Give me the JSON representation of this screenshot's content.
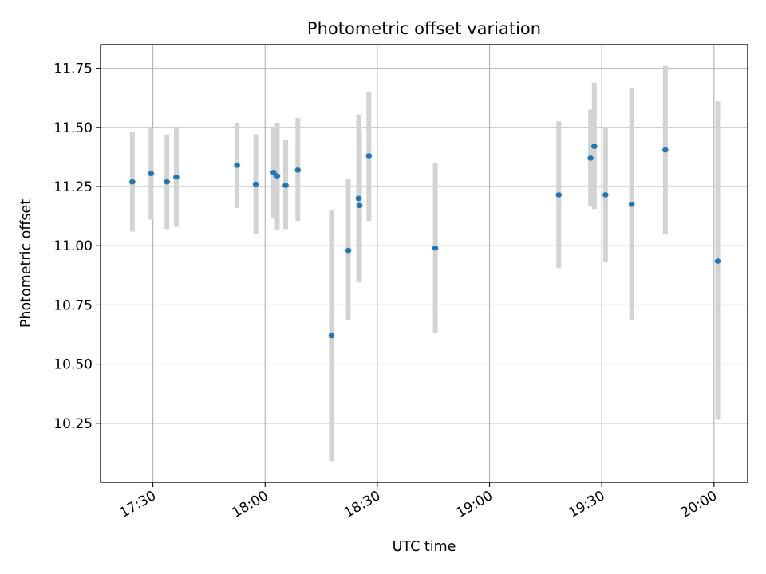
{
  "chart_data": {
    "type": "scatter",
    "title": "Photometric offset variation",
    "xlabel": "UTC time",
    "ylabel": "Photometric offset",
    "x_tick_labels": [
      "17:30",
      "18:00",
      "18:30",
      "19:00",
      "19:30",
      "20:00"
    ],
    "y_tick_labels": [
      "10.25",
      "10.50",
      "10.75",
      "11.00",
      "11.25",
      "11.50",
      "11.75"
    ],
    "y_ticks": [
      10.25,
      10.5,
      10.75,
      11.0,
      11.25,
      11.5,
      11.75
    ],
    "xlim": [
      "17:16",
      "20:09"
    ],
    "ylim": [
      10.0,
      11.85
    ],
    "grid": true,
    "point_color": "#1f77b4",
    "errorbar_color": "#d3d3d3",
    "series": [
      {
        "points": [
          {
            "time": "17:24:30",
            "y": 11.27,
            "ylow": 11.06,
            "yhigh": 11.48
          },
          {
            "time": "17:29:30",
            "y": 11.305,
            "ylow": 11.11,
            "yhigh": 11.5
          },
          {
            "time": "17:33:45",
            "y": 11.27,
            "ylow": 11.07,
            "yhigh": 11.47
          },
          {
            "time": "17:36:15",
            "y": 11.29,
            "ylow": 11.08,
            "yhigh": 11.5
          },
          {
            "time": "17:52:30",
            "y": 11.34,
            "ylow": 11.16,
            "yhigh": 11.52
          },
          {
            "time": "17:57:30",
            "y": 11.26,
            "ylow": 11.05,
            "yhigh": 11.47
          },
          {
            "time": "18:02:15",
            "y": 11.31,
            "ylow": 11.115,
            "yhigh": 11.5
          },
          {
            "time": "18:03:15",
            "y": 11.295,
            "ylow": 11.065,
            "yhigh": 11.52
          },
          {
            "time": "18:05:30",
            "y": 11.255,
            "ylow": 11.07,
            "yhigh": 11.445
          },
          {
            "time": "18:08:45",
            "y": 11.32,
            "ylow": 11.105,
            "yhigh": 11.54
          },
          {
            "time": "18:17:45",
            "y": 10.62,
            "ylow": 10.09,
            "yhigh": 11.15
          },
          {
            "time": "18:22:15",
            "y": 10.98,
            "ylow": 10.685,
            "yhigh": 11.28
          },
          {
            "time": "18:25:00",
            "y": 11.2,
            "ylow": 10.845,
            "yhigh": 11.555
          },
          {
            "time": "18:25:15",
            "y": 11.17,
            "ylow": 10.855,
            "yhigh": 11.49
          },
          {
            "time": "18:27:45",
            "y": 11.38,
            "ylow": 11.105,
            "yhigh": 11.65
          },
          {
            "time": "18:45:30",
            "y": 10.99,
            "ylow": 10.63,
            "yhigh": 11.35
          },
          {
            "time": "19:18:30",
            "y": 11.215,
            "ylow": 10.905,
            "yhigh": 11.525
          },
          {
            "time": "19:27:00",
            "y": 11.37,
            "ylow": 11.165,
            "yhigh": 11.575
          },
          {
            "time": "19:28:00",
            "y": 11.42,
            "ylow": 11.155,
            "yhigh": 11.69
          },
          {
            "time": "19:31:00",
            "y": 11.215,
            "ylow": 10.93,
            "yhigh": 11.5
          },
          {
            "time": "19:38:00",
            "y": 11.175,
            "ylow": 10.685,
            "yhigh": 11.665
          },
          {
            "time": "19:47:00",
            "y": 11.405,
            "ylow": 11.05,
            "yhigh": 11.76
          },
          {
            "time": "20:01:00",
            "y": 10.935,
            "ylow": 10.265,
            "yhigh": 11.61
          }
        ]
      }
    ]
  }
}
